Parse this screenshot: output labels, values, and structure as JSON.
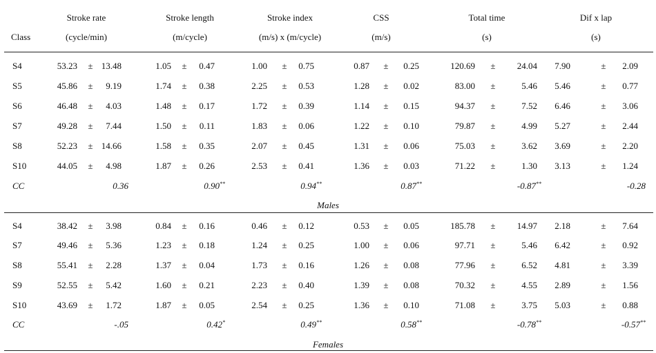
{
  "header": {
    "class_label": "Class",
    "groups": [
      {
        "line1": "Stroke rate",
        "line2": "(cycle/min)"
      },
      {
        "line1": "Stroke length",
        "line2": "(m/cycle)"
      },
      {
        "line1": "Stroke index",
        "line2": "(m/s) x (m/cycle)"
      },
      {
        "line1": "CSS",
        "line2": "(m/s)"
      },
      {
        "line1": "Total time",
        "line2": "(s)"
      },
      {
        "line1": "Dif x lap",
        "line2": "(s)"
      }
    ]
  },
  "pm_symbol": "±",
  "sections": [
    {
      "label": "Males",
      "rows": [
        {
          "cls": "S4",
          "vals": [
            [
              "53.23",
              "13.48"
            ],
            [
              "1.05",
              "0.47"
            ],
            [
              "1.00",
              "0.75"
            ],
            [
              "0.87",
              "0.25"
            ],
            [
              "120.69",
              "24.04"
            ],
            [
              "7.90",
              "2.09"
            ]
          ]
        },
        {
          "cls": "S5",
          "vals": [
            [
              "45.86",
              "9.19"
            ],
            [
              "1.74",
              "0.38"
            ],
            [
              "2.25",
              "0.53"
            ],
            [
              "1.28",
              "0.02"
            ],
            [
              "83.00",
              "5.46"
            ],
            [
              "5.46",
              "0.77"
            ]
          ]
        },
        {
          "cls": "S6",
          "vals": [
            [
              "46.48",
              "4.03"
            ],
            [
              "1.48",
              "0.17"
            ],
            [
              "1.72",
              "0.39"
            ],
            [
              "1.14",
              "0.15"
            ],
            [
              "94.37",
              "7.52"
            ],
            [
              "6.46",
              "3.06"
            ]
          ]
        },
        {
          "cls": "S7",
          "vals": [
            [
              "49.28",
              "7.44"
            ],
            [
              "1.50",
              "0.11"
            ],
            [
              "1.83",
              "0.06"
            ],
            [
              "1.22",
              "0.10"
            ],
            [
              "79.87",
              "4.99"
            ],
            [
              "5.27",
              "2.44"
            ]
          ]
        },
        {
          "cls": "S8",
          "vals": [
            [
              "52.23",
              "14.66"
            ],
            [
              "1.58",
              "0.35"
            ],
            [
              "2.07",
              "0.45"
            ],
            [
              "1.31",
              "0.06"
            ],
            [
              "75.03",
              "3.62"
            ],
            [
              "3.69",
              "2.20"
            ]
          ]
        },
        {
          "cls": "S10",
          "vals": [
            [
              "44.05",
              "4.98"
            ],
            [
              "1.87",
              "0.26"
            ],
            [
              "2.53",
              "0.41"
            ],
            [
              "1.36",
              "0.03"
            ],
            [
              "71.22",
              "1.30"
            ],
            [
              "3.13",
              "1.24"
            ]
          ]
        }
      ],
      "cc": {
        "label": "CC",
        "vals": [
          {
            "v": "0.36",
            "sup": ""
          },
          {
            "v": "0.90",
            "sup": "**"
          },
          {
            "v": "0.94",
            "sup": "**"
          },
          {
            "v": "0.87",
            "sup": "**"
          },
          {
            "v": "-0.87",
            "sup": "**"
          },
          {
            "v": "-0.28",
            "sup": ""
          }
        ]
      }
    },
    {
      "label": "Females",
      "rows": [
        {
          "cls": "S4",
          "vals": [
            [
              "38.42",
              "3.98"
            ],
            [
              "0.84",
              "0.16"
            ],
            [
              "0.46",
              "0.12"
            ],
            [
              "0.53",
              "0.05"
            ],
            [
              "185.78",
              "14.97"
            ],
            [
              "2.18",
              "7.64"
            ]
          ]
        },
        {
          "cls": "S7",
          "vals": [
            [
              "49.46",
              "5.36"
            ],
            [
              "1.23",
              "0.18"
            ],
            [
              "1.24",
              "0.25"
            ],
            [
              "1.00",
              "0.06"
            ],
            [
              "97.71",
              "5.46"
            ],
            [
              "6.42",
              "0.92"
            ]
          ]
        },
        {
          "cls": "S8",
          "vals": [
            [
              "55.41",
              "2.28"
            ],
            [
              "1.37",
              "0.04"
            ],
            [
              "1.73",
              "0.16"
            ],
            [
              "1.26",
              "0.08"
            ],
            [
              "77.96",
              "6.52"
            ],
            [
              "4.81",
              "3.39"
            ]
          ]
        },
        {
          "cls": "S9",
          "vals": [
            [
              "52.55",
              "5.42"
            ],
            [
              "1.60",
              "0.21"
            ],
            [
              "2.23",
              "0.40"
            ],
            [
              "1.39",
              "0.08"
            ],
            [
              "70.32",
              "4.55"
            ],
            [
              "2.89",
              "1.56"
            ]
          ]
        },
        {
          "cls": "S10",
          "vals": [
            [
              "43.69",
              "1.72"
            ],
            [
              "1.87",
              "0.05"
            ],
            [
              "2.54",
              "0.25"
            ],
            [
              "1.36",
              "0.10"
            ],
            [
              "71.08",
              "3.75"
            ],
            [
              "5.03",
              "0.88"
            ]
          ]
        }
      ],
      "cc": {
        "label": "CC",
        "vals": [
          {
            "v": "-.05",
            "sup": ""
          },
          {
            "v": "0.42",
            "sup": "*"
          },
          {
            "v": "0.49",
            "sup": "**"
          },
          {
            "v": "0.58",
            "sup": "**"
          },
          {
            "v": "-0.78",
            "sup": "**"
          },
          {
            "v": "-0.57",
            "sup": "**"
          }
        ]
      }
    }
  ]
}
